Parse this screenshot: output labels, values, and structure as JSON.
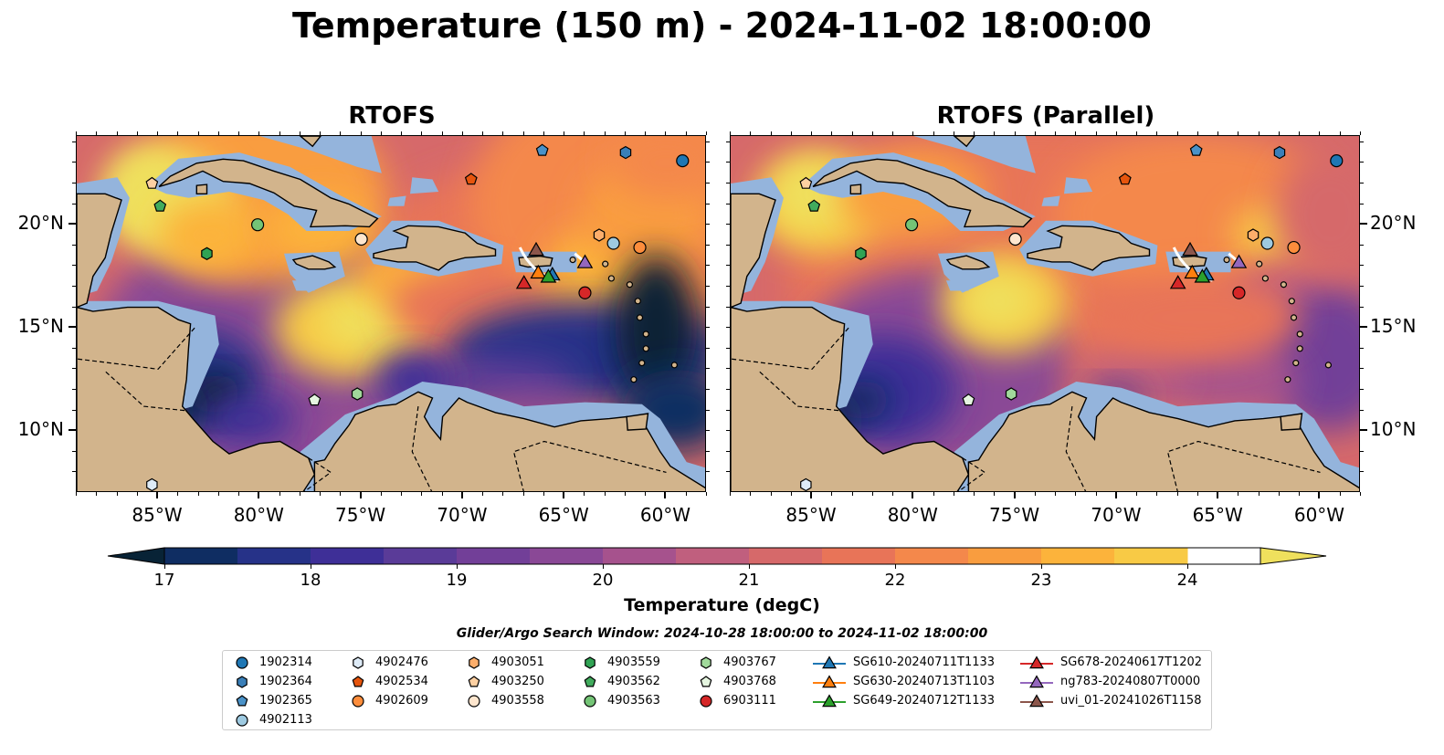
{
  "title": "Temperature (150 m) - 2024-11-02 18:00:00",
  "panels": [
    {
      "title": "RTOFS"
    },
    {
      "title": "RTOFS (Parallel)"
    }
  ],
  "map": {
    "lon_range": [
      -89,
      -58
    ],
    "lat_range": [
      7,
      24.3
    ],
    "lon_ticks": [
      "85°W",
      "80°W",
      "75°W",
      "70°W",
      "65°W",
      "60°W"
    ],
    "lon_tick_values": [
      -85,
      -80,
      -75,
      -70,
      -65,
      -60
    ],
    "lat_ticks": [
      "20°N",
      "15°N",
      "10°N"
    ],
    "lat_tick_values": [
      20,
      15,
      10
    ],
    "land_color": "#d2b48c",
    "shelf_color": "#94b4dc",
    "coastline_color": "#000000"
  },
  "colorbar": {
    "label": "Temperature (degC)",
    "ticks": [
      "17",
      "18",
      "19",
      "20",
      "21",
      "22",
      "23",
      "24"
    ],
    "tick_values": [
      17,
      18,
      19,
      20,
      21,
      22,
      23,
      24
    ],
    "range": [
      17,
      24.5
    ],
    "extend": "both",
    "colors": [
      "#082336",
      "#0f2d62",
      "#263288",
      "#3e2f97",
      "#5a3b98",
      "#723f98",
      "#8a4896",
      "#a6528d",
      "#c05f7e",
      "#d6696a",
      "#e87458",
      "#f4884b",
      "#f99d3f",
      "#fcb33b",
      "#f8ca45",
      "#efe05d"
    ]
  },
  "search_window": "Glider/Argo Search Window: 2024-10-28 18:00:00 to 2024-11-02 18:00:00",
  "legend": {
    "argo": [
      {
        "label": "1902314",
        "marker": "circle",
        "color": "#1f77b4"
      },
      {
        "label": "1902364",
        "marker": "hexagon",
        "color": "#3a7fb8"
      },
      {
        "label": "1902365",
        "marker": "pentagon",
        "color": "#4a92c8"
      },
      {
        "label": "4902113",
        "marker": "circle",
        "color": "#9ecae1"
      },
      {
        "label": "4902476",
        "marker": "hexagon",
        "color": "#deebf7"
      },
      {
        "label": "4902534",
        "marker": "pentagon",
        "color": "#e6550d"
      },
      {
        "label": "4902609",
        "marker": "circle",
        "color": "#fd8d3c"
      },
      {
        "label": "4903051",
        "marker": "hexagon",
        "color": "#fdae6b"
      },
      {
        "label": "4903250",
        "marker": "pentagon",
        "color": "#fdd0a2"
      },
      {
        "label": "4903558",
        "marker": "circle",
        "color": "#fee6ce"
      },
      {
        "label": "4903559",
        "marker": "hexagon",
        "color": "#31a354"
      },
      {
        "label": "4903562",
        "marker": "pentagon",
        "color": "#41ab5d"
      },
      {
        "label": "4903563",
        "marker": "circle",
        "color": "#74c476"
      },
      {
        "label": "4903767",
        "marker": "hexagon",
        "color": "#a1d99b"
      },
      {
        "label": "4903768",
        "marker": "pentagon",
        "color": "#e5f5e0"
      },
      {
        "label": "6903111",
        "marker": "circle",
        "color": "#d62728"
      }
    ],
    "gliders": [
      {
        "label": "SG610-20240711T1133",
        "color": "#1f77b4"
      },
      {
        "label": "SG630-20240713T1103",
        "color": "#ff7f0e"
      },
      {
        "label": "SG649-20240712T1133",
        "color": "#2ca02c"
      },
      {
        "label": "SG678-20240617T1202",
        "color": "#d62728"
      },
      {
        "label": "ng783-20240807T0000",
        "color": "#9467bd"
      },
      {
        "label": "uvi_01-20241026T1158",
        "color": "#8c564b"
      }
    ]
  },
  "observations": {
    "argo": [
      {
        "id": "1902314",
        "lon": -59.2,
        "lat": 23.1
      },
      {
        "id": "1902364",
        "lon": -62.0,
        "lat": 23.5
      },
      {
        "id": "1902365",
        "lon": -66.1,
        "lat": 23.6
      },
      {
        "id": "4902113",
        "lon": -62.6,
        "lat": 19.1
      },
      {
        "id": "4902476",
        "lon": -85.3,
        "lat": 7.4
      },
      {
        "id": "4902534",
        "lon": -69.6,
        "lat": 22.2
      },
      {
        "id": "4902609",
        "lon": -61.3,
        "lat": 18.9
      },
      {
        "id": "4903051",
        "lon": -63.3,
        "lat": 19.5
      },
      {
        "id": "4903250",
        "lon": -85.3,
        "lat": 22.0
      },
      {
        "id": "4903558",
        "lon": -75.0,
        "lat": 19.3
      },
      {
        "id": "4903559",
        "lon": -82.6,
        "lat": 18.6
      },
      {
        "id": "4903562",
        "lon": -84.9,
        "lat": 20.9
      },
      {
        "id": "4903563",
        "lon": -80.1,
        "lat": 20.0
      },
      {
        "id": "4903767",
        "lon": -75.2,
        "lat": 11.8
      },
      {
        "id": "4903768",
        "lon": -77.3,
        "lat": 11.5
      },
      {
        "id": "6903111",
        "lon": -64.0,
        "lat": 16.7
      }
    ],
    "gliders": [
      {
        "id": "SG610-20240711T1133",
        "lon": -65.6,
        "lat": 17.6
      },
      {
        "id": "SG630-20240713T1103",
        "lon": -66.3,
        "lat": 17.7
      },
      {
        "id": "SG649-20240712T1133",
        "lon": -65.8,
        "lat": 17.5
      },
      {
        "id": "SG678-20240617T1202",
        "lon": -67.0,
        "lat": 17.2
      },
      {
        "id": "ng783-20240807T0000",
        "lon": -64.0,
        "lat": 18.2
      },
      {
        "id": "uvi_01-20241026T1158",
        "lon": -66.4,
        "lat": 18.8
      }
    ]
  }
}
